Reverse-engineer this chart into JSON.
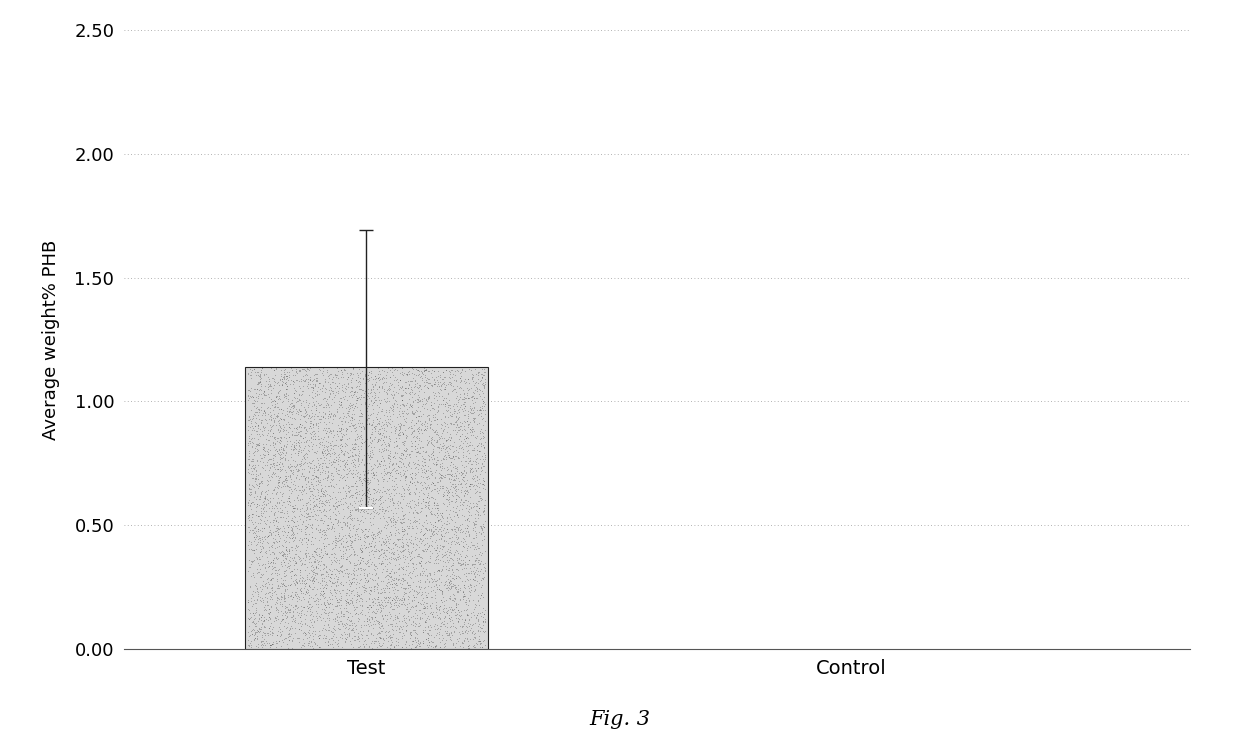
{
  "categories": [
    "Test",
    "Control"
  ],
  "values": [
    1.14,
    0.0
  ],
  "error_upper": [
    0.55,
    0.0
  ],
  "error_lower": [
    0.57,
    0.0
  ],
  "bar_color": "#d8d8d8",
  "bar_edgecolor": "#222222",
  "ylabel": "Average weight% PHB",
  "ylim": [
    0.0,
    2.5
  ],
  "yticks": [
    0.0,
    0.5,
    1.0,
    1.5,
    2.0,
    2.5
  ],
  "ytick_labels": [
    "0.00",
    "0.50",
    "1.00",
    "1.50",
    "2.00",
    "2.50"
  ],
  "caption": "Fig. 3",
  "grid_color": "#999999",
  "grid_linestyle": ":",
  "background_color": "#ffffff",
  "bar_width": 0.5,
  "figsize": [
    12.4,
    7.46
  ],
  "dpi": 100
}
